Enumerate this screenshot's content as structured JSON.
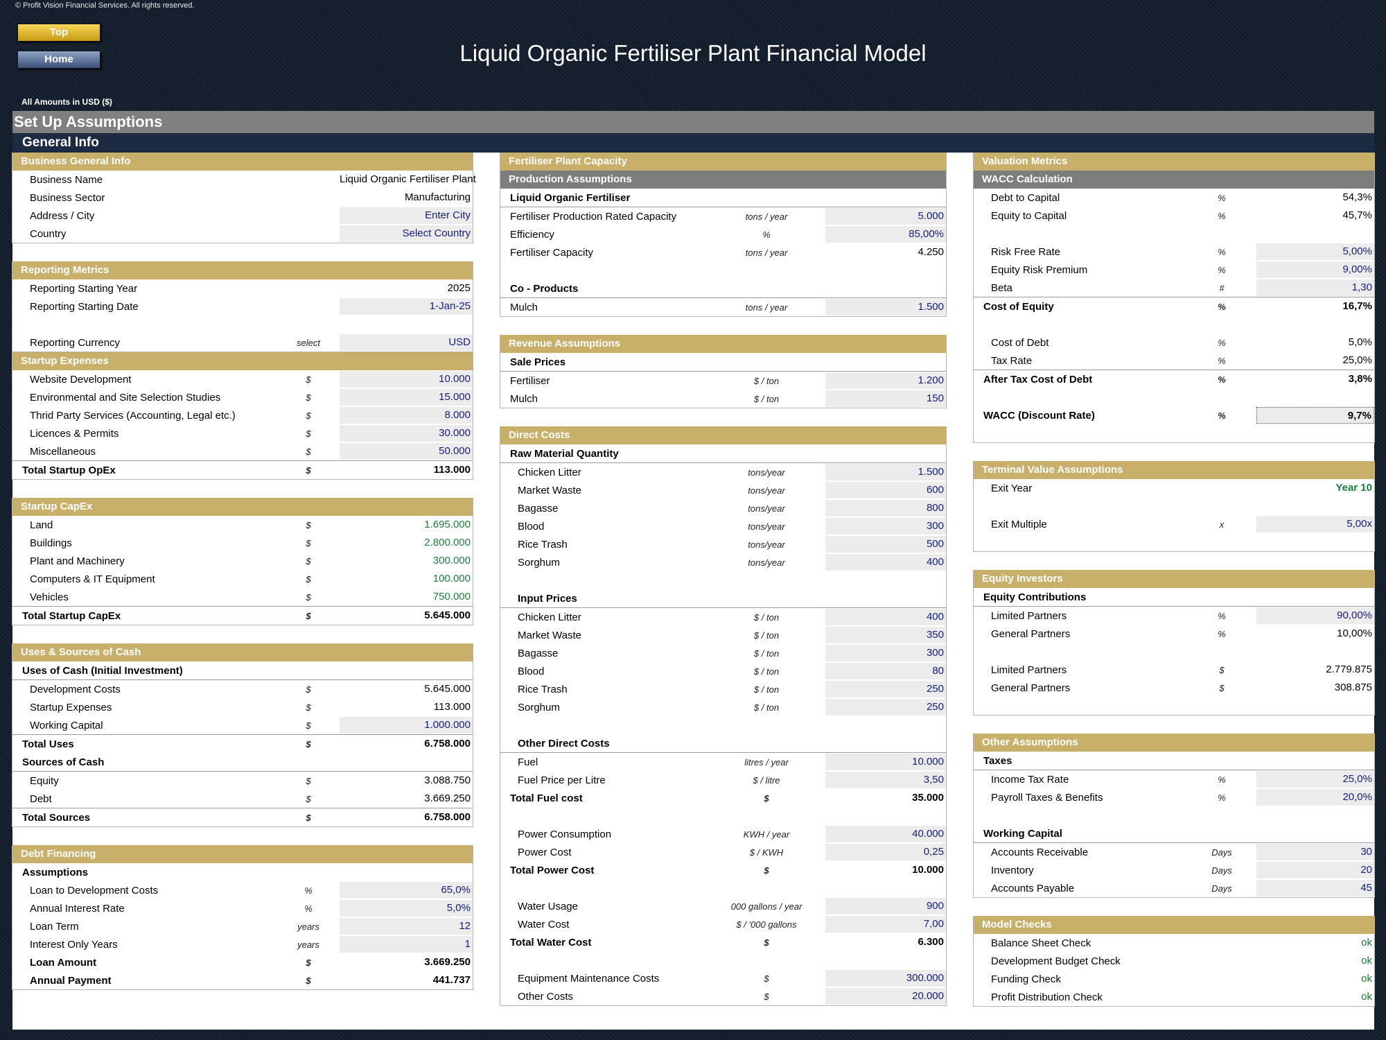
{
  "header": {
    "copyright": "© Profit Vision Financial Services. All rights reserved.",
    "top_button": "Top",
    "home_button": "Home",
    "title": "Liquid Organic Fertiliser Plant Financial Model",
    "amounts_note": "All Amounts in  USD ($)",
    "setup_title": "Set Up Assumptions",
    "general_info": "General Info"
  },
  "business": {
    "title": "Business General Info",
    "rows": [
      {
        "label": "Business Name",
        "unit": "",
        "value": "Liquid Organic Fertiliser Plant",
        "style": "plain"
      },
      {
        "label": "Business Sector",
        "unit": "",
        "value": "Manufacturing",
        "style": "plain"
      },
      {
        "label": "Address / City",
        "unit": "",
        "value": "Enter City",
        "style": "input"
      },
      {
        "label": "Country",
        "unit": "",
        "value": "Select Country",
        "style": "input"
      }
    ]
  },
  "reporting": {
    "title": "Reporting Metrics",
    "rows": [
      {
        "label": "Reporting Starting Year",
        "unit": "",
        "value": "2025",
        "style": "plain"
      },
      {
        "label": "Reporting Starting Date",
        "unit": "",
        "value": "1-Jan-25",
        "style": "input"
      },
      {
        "label": "",
        "unit": "",
        "value": "",
        "style": "gap"
      },
      {
        "label": "Reporting Currency",
        "unit": "select",
        "value": "USD",
        "style": "input"
      }
    ]
  },
  "startup_expenses": {
    "title": "Startup Expenses",
    "rows": [
      {
        "label": "Website Development",
        "unit": "$",
        "value": "10.000",
        "style": "input"
      },
      {
        "label": "Environmental and Site Selection Studies",
        "unit": "$",
        "value": "15.000",
        "style": "input"
      },
      {
        "label": "Thrid Party Services (Accounting, Legal etc.)",
        "unit": "$",
        "value": "8.000",
        "style": "input"
      },
      {
        "label": "Licences & Permits",
        "unit": "$",
        "value": "30.000",
        "style": "input"
      },
      {
        "label": "Miscellaneous",
        "unit": "$",
        "value": "50.000",
        "style": "input"
      }
    ],
    "total": {
      "label": "Total Startup OpEx",
      "unit": "$",
      "value": "113.000"
    }
  },
  "startup_capex": {
    "title": "Startup CapEx",
    "rows": [
      {
        "label": "Land",
        "unit": "$",
        "value": "1.695.000",
        "style": "green"
      },
      {
        "label": "Buildings",
        "unit": "$",
        "value": "2.800.000",
        "style": "green"
      },
      {
        "label": "Plant and Machinery",
        "unit": "$",
        "value": "300.000",
        "style": "green"
      },
      {
        "label": "Computers & IT Equipment",
        "unit": "$",
        "value": "100.000",
        "style": "green"
      },
      {
        "label": "Vehicles",
        "unit": "$",
        "value": "750.000",
        "style": "green"
      }
    ],
    "total": {
      "label": "Total Startup CapEx",
      "unit": "$",
      "value": "5.645.000"
    }
  },
  "uses_sources": {
    "title": "Uses & Sources of Cash",
    "uses_header": "Uses of Cash (Initial Investment)",
    "uses": [
      {
        "label": "Development Costs",
        "unit": "$",
        "value": "5.645.000",
        "style": "plain"
      },
      {
        "label": "Startup Expenses",
        "unit": "$",
        "value": "113.000",
        "style": "plain"
      },
      {
        "label": "Working Capital",
        "unit": "$",
        "value": "1.000.000",
        "style": "input"
      }
    ],
    "uses_total": {
      "label": "Total Uses",
      "unit": "$",
      "value": "6.758.000"
    },
    "sources_header": "Sources of Cash",
    "sources": [
      {
        "label": "Equity",
        "unit": "$",
        "value": "3.088.750",
        "style": "plain"
      },
      {
        "label": "Debt",
        "unit": "$",
        "value": "3.669.250",
        "style": "plain"
      }
    ],
    "sources_total": {
      "label": "Total Sources",
      "unit": "$",
      "value": "6.758.000"
    }
  },
  "debt": {
    "title": "Debt Financing",
    "assumptions_header": "Assumptions",
    "rows": [
      {
        "label": "Loan to Development Costs",
        "unit": "%",
        "value": "65,0%",
        "style": "input"
      },
      {
        "label": "Annual Interest Rate",
        "unit": "%",
        "value": "5,0%",
        "style": "input"
      },
      {
        "label": "Loan Term",
        "unit": "years",
        "value": "12",
        "style": "input"
      },
      {
        "label": "Interest Only Years",
        "unit": "years",
        "value": "1",
        "style": "input"
      }
    ],
    "loan_amount": {
      "label": "Loan Amount",
      "unit": "$",
      "value": "3.669.250"
    },
    "annual_payment": {
      "label": "Annual Payment",
      "unit": "$",
      "value": "441.737"
    }
  },
  "capacity": {
    "title": "Fertiliser Plant Capacity",
    "sub_title": "Production Assumptions",
    "group1": "Liquid Organic Fertiliser",
    "rows1": [
      {
        "label": "Fertiliser Production Rated Capacity",
        "unit": "tons / year",
        "value": "5.000",
        "style": "input"
      },
      {
        "label": "Efficiency",
        "unit": "%",
        "value": "85,00%",
        "style": "input"
      },
      {
        "label": "Fertiliser Capacity",
        "unit": "tons / year",
        "value": "4.250",
        "style": "plain"
      }
    ],
    "group2": "Co - Products",
    "rows2": [
      {
        "label": "Mulch",
        "unit": "tons / year",
        "value": "1.500",
        "style": "input"
      }
    ]
  },
  "revenue": {
    "title": "Revenue Assumptions",
    "group": "Sale Prices",
    "rows": [
      {
        "label": "Fertiliser",
        "unit": "$ / ton",
        "value": "1.200",
        "style": "input"
      },
      {
        "label": "Mulch",
        "unit": "$ / ton",
        "value": "150",
        "style": "input"
      }
    ]
  },
  "direct_costs": {
    "title": "Direct Costs",
    "raw_header": "Raw Material Quantity",
    "raw": [
      {
        "label": "Chicken Litter",
        "unit": "tons/year",
        "value": "1.500",
        "style": "input"
      },
      {
        "label": "Market Waste",
        "unit": "tons/year",
        "value": "600",
        "style": "input"
      },
      {
        "label": "Bagasse",
        "unit": "tons/year",
        "value": "800",
        "style": "input"
      },
      {
        "label": "Blood",
        "unit": "tons/year",
        "value": "300",
        "style": "input"
      },
      {
        "label": "Rice Trash",
        "unit": "tons/year",
        "value": "500",
        "style": "input"
      },
      {
        "label": "Sorghum",
        "unit": "tons/year",
        "value": "400",
        "style": "input"
      }
    ],
    "price_header": "Input Prices",
    "prices": [
      {
        "label": "Chicken Litter",
        "unit": "$ / ton",
        "value": "400",
        "style": "input"
      },
      {
        "label": "Market Waste",
        "unit": "$ / ton",
        "value": "350",
        "style": "input"
      },
      {
        "label": "Bagasse",
        "unit": "$ / ton",
        "value": "300",
        "style": "input"
      },
      {
        "label": "Blood",
        "unit": "$ / ton",
        "value": "80",
        "style": "input"
      },
      {
        "label": "Rice Trash",
        "unit": "$ / ton",
        "value": "250",
        "style": "input"
      },
      {
        "label": "Sorghum",
        "unit": "$ / ton",
        "value": "250",
        "style": "input"
      }
    ],
    "other_header": "Other Direct Costs",
    "fuel": [
      {
        "label": "Fuel",
        "unit": "litres / year",
        "value": "10.000",
        "style": "input"
      },
      {
        "label": "Fuel Price per Litre",
        "unit": "$ / litre",
        "value": "3,50",
        "style": "input"
      }
    ],
    "fuel_total": {
      "label": "Total Fuel cost",
      "unit": "$",
      "value": "35.000"
    },
    "power": [
      {
        "label": "Power Consumption",
        "unit": "KWH / year",
        "value": "40.000",
        "style": "input"
      },
      {
        "label": "Power Cost",
        "unit": "$ / KWH",
        "value": "0,25",
        "style": "input"
      }
    ],
    "power_total": {
      "label": "Total Power Cost",
      "unit": "$",
      "value": "10.000"
    },
    "water": [
      {
        "label": "Water Usage",
        "unit": "000 gallons / year",
        "value": "900",
        "style": "input"
      },
      {
        "label": "Water Cost",
        "unit": "$ / '000 gallons",
        "value": "7,00",
        "style": "input"
      }
    ],
    "water_total": {
      "label": "Total Water Cost",
      "unit": "$",
      "value": "6.300"
    },
    "misc": [
      {
        "label": "Equipment Maintenance Costs",
        "unit": "$",
        "value": "300.000",
        "style": "input"
      },
      {
        "label": "Other Costs",
        "unit": "$",
        "value": "20.000",
        "style": "input"
      }
    ]
  },
  "valuation": {
    "title": "Valuation Metrics",
    "sub_title": "WACC Calculation",
    "rows1": [
      {
        "label": "Debt to Capital",
        "unit": "%",
        "value": "54,3%",
        "style": "plain"
      },
      {
        "label": "Equity to Capital",
        "unit": "%",
        "value": "45,7%",
        "style": "plain"
      }
    ],
    "rows2": [
      {
        "label": "Risk Free Rate",
        "unit": "%",
        "value": "5,00%",
        "style": "input"
      },
      {
        "label": "Equity Risk Premium",
        "unit": "%",
        "value": "9,00%",
        "style": "input"
      },
      {
        "label": "Beta",
        "unit": "#",
        "value": "1,30",
        "style": "input"
      }
    ],
    "cost_equity": {
      "label": "Cost of Equity",
      "unit": "%",
      "value": "16,7%"
    },
    "rows3": [
      {
        "label": "Cost of Debt",
        "unit": "%",
        "value": "5,0%",
        "style": "plain"
      },
      {
        "label": "Tax Rate",
        "unit": "%",
        "value": "25,0%",
        "style": "plain"
      }
    ],
    "after_tax": {
      "label": "After Tax Cost of Debt",
      "unit": "%",
      "value": "3,8%"
    },
    "wacc": {
      "label": "WACC (Discount Rate)",
      "unit": "%",
      "value": "9,7%"
    }
  },
  "terminal": {
    "title": "Terminal Value Assumptions",
    "exit_year": {
      "label": "Exit Year",
      "unit": "",
      "value": "Year 10"
    },
    "exit_multiple": {
      "label": "Exit Multiple",
      "unit": "x",
      "value": "5,00x"
    }
  },
  "equity": {
    "title": "Equity Investors",
    "header": "Equity Contributions",
    "rows1": [
      {
        "label": "Limited Partners",
        "unit": "%",
        "value": "90,00%",
        "style": "input"
      },
      {
        "label": "General Partners",
        "unit": "%",
        "value": "10,00%",
        "style": "plain"
      }
    ],
    "rows2": [
      {
        "label": "Limited Partners",
        "unit": "$",
        "value": "2.779.875",
        "style": "plain"
      },
      {
        "label": "General Partners",
        "unit": "$",
        "value": "308.875",
        "style": "plain"
      }
    ]
  },
  "other": {
    "title": "Other Assumptions",
    "taxes_header": "Taxes",
    "taxes": [
      {
        "label": "Income Tax Rate",
        "unit": "%",
        "value": "25,0%",
        "style": "input"
      },
      {
        "label": "Payroll Taxes & Benefits",
        "unit": "%",
        "value": "20,0%",
        "style": "input"
      }
    ],
    "wc_header": "Working Capital",
    "wc": [
      {
        "label": "Accounts Receivable",
        "unit": "Days",
        "value": "30",
        "style": "input"
      },
      {
        "label": "Inventory",
        "unit": "Days",
        "value": "20",
        "style": "input"
      },
      {
        "label": "Accounts Payable",
        "unit": "Days",
        "value": "45",
        "style": "input"
      }
    ]
  },
  "checks": {
    "title": "Model Checks",
    "rows": [
      {
        "label": "Balance Sheet Check",
        "unit": "",
        "value": "ok",
        "style": "green"
      },
      {
        "label": "Development Budget Check",
        "unit": "",
        "value": "ok",
        "style": "green"
      },
      {
        "label": "Funding Check",
        "unit": "",
        "value": "ok",
        "style": "green"
      },
      {
        "label": "Profit Distribution Check",
        "unit": "",
        "value": "ok",
        "style": "green"
      }
    ]
  }
}
